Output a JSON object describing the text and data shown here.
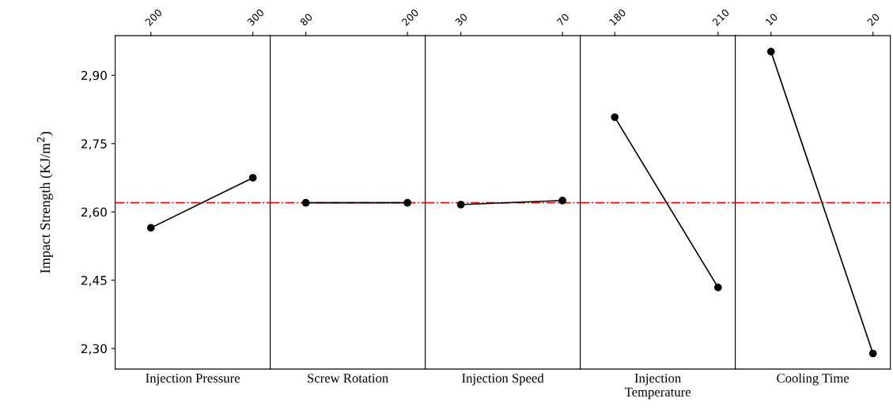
{
  "chart_data": [
    {
      "type": "line",
      "xlabel": "Injection Pressure",
      "ylabel": "Impact Strength (KJ/m$^{2}$)",
      "x": [
        200,
        300
      ],
      "xlim": [
        165,
        317
      ],
      "xticks": [
        200,
        300
      ],
      "series": [
        {
          "color": "#000000",
          "values": [
            2.565,
            2.675
          ]
        }
      ],
      "ylim": [
        2.255,
        2.987
      ],
      "yticks": [
        {
          "value": 2.3,
          "label": "2,30"
        },
        {
          "value": 2.45,
          "label": "2,45"
        },
        {
          "value": 2.6,
          "label": "2,60"
        },
        {
          "value": 2.75,
          "label": "2,75"
        },
        {
          "value": 2.9,
          "label": "2,90"
        }
      ],
      "ref_lines": [
        {
          "axis": "y",
          "value": 2.62,
          "color": "#ff0000",
          "line_style": "dashdot"
        }
      ],
      "marker": "circle",
      "grid": false,
      "legend": false
    },
    {
      "type": "line",
      "xlabel": "Screw Rotation",
      "x": [
        80,
        200
      ],
      "xlim": [
        38,
        221
      ],
      "xticks": [
        80,
        200
      ],
      "series": [
        {
          "color": "#000000",
          "values": [
            2.62,
            2.62
          ]
        }
      ],
      "ylim": [
        2.255,
        2.987
      ],
      "tick_labels": "x",
      "ref_lines": [
        {
          "axis": "y",
          "value": 2.62,
          "color": "#ff0000",
          "line_style": "dashdot"
        }
      ],
      "marker": "circle",
      "grid": false,
      "legend": false
    },
    {
      "type": "line",
      "xlabel": "Injection Speed",
      "x": [
        30,
        70
      ],
      "xlim": [
        16,
        77
      ],
      "xticks": [
        30,
        70
      ],
      "series": [
        {
          "color": "#000000",
          "values": [
            2.616,
            2.625
          ]
        }
      ],
      "ylim": [
        2.255,
        2.987
      ],
      "tick_labels": "x",
      "ref_lines": [
        {
          "axis": "y",
          "value": 2.62,
          "color": "#ff0000",
          "line_style": "dashdot"
        }
      ],
      "marker": "circle",
      "grid": false,
      "legend": false
    },
    {
      "type": "line",
      "xlabel": "Injection\nTemperature",
      "x": [
        180,
        210
      ],
      "xlim": [
        170,
        215
      ],
      "xticks": [
        180,
        210
      ],
      "series": [
        {
          "color": "#000000",
          "values": [
            2.808,
            2.434
          ]
        }
      ],
      "ylim": [
        2.255,
        2.987
      ],
      "tick_labels": "x",
      "ref_lines": [
        {
          "axis": "y",
          "value": 2.62,
          "color": "#ff0000",
          "line_style": "dashdot"
        }
      ],
      "marker": "circle",
      "grid": false,
      "legend": false
    },
    {
      "type": "line",
      "xlabel": "Cooling Time",
      "x": [
        10,
        20
      ],
      "xlim": [
        6.5,
        21.7
      ],
      "xticks": [
        10,
        20
      ],
      "series": [
        {
          "color": "#000000",
          "values": [
            2.952,
            2.289
          ]
        }
      ],
      "ylim": [
        2.255,
        2.987
      ],
      "tick_labels": "x",
      "ref_lines": [
        {
          "axis": "y",
          "value": 2.62,
          "color": "#ff0000",
          "line_style": "dashdot"
        }
      ],
      "marker": "circle",
      "grid": false,
      "legend": false
    }
  ]
}
